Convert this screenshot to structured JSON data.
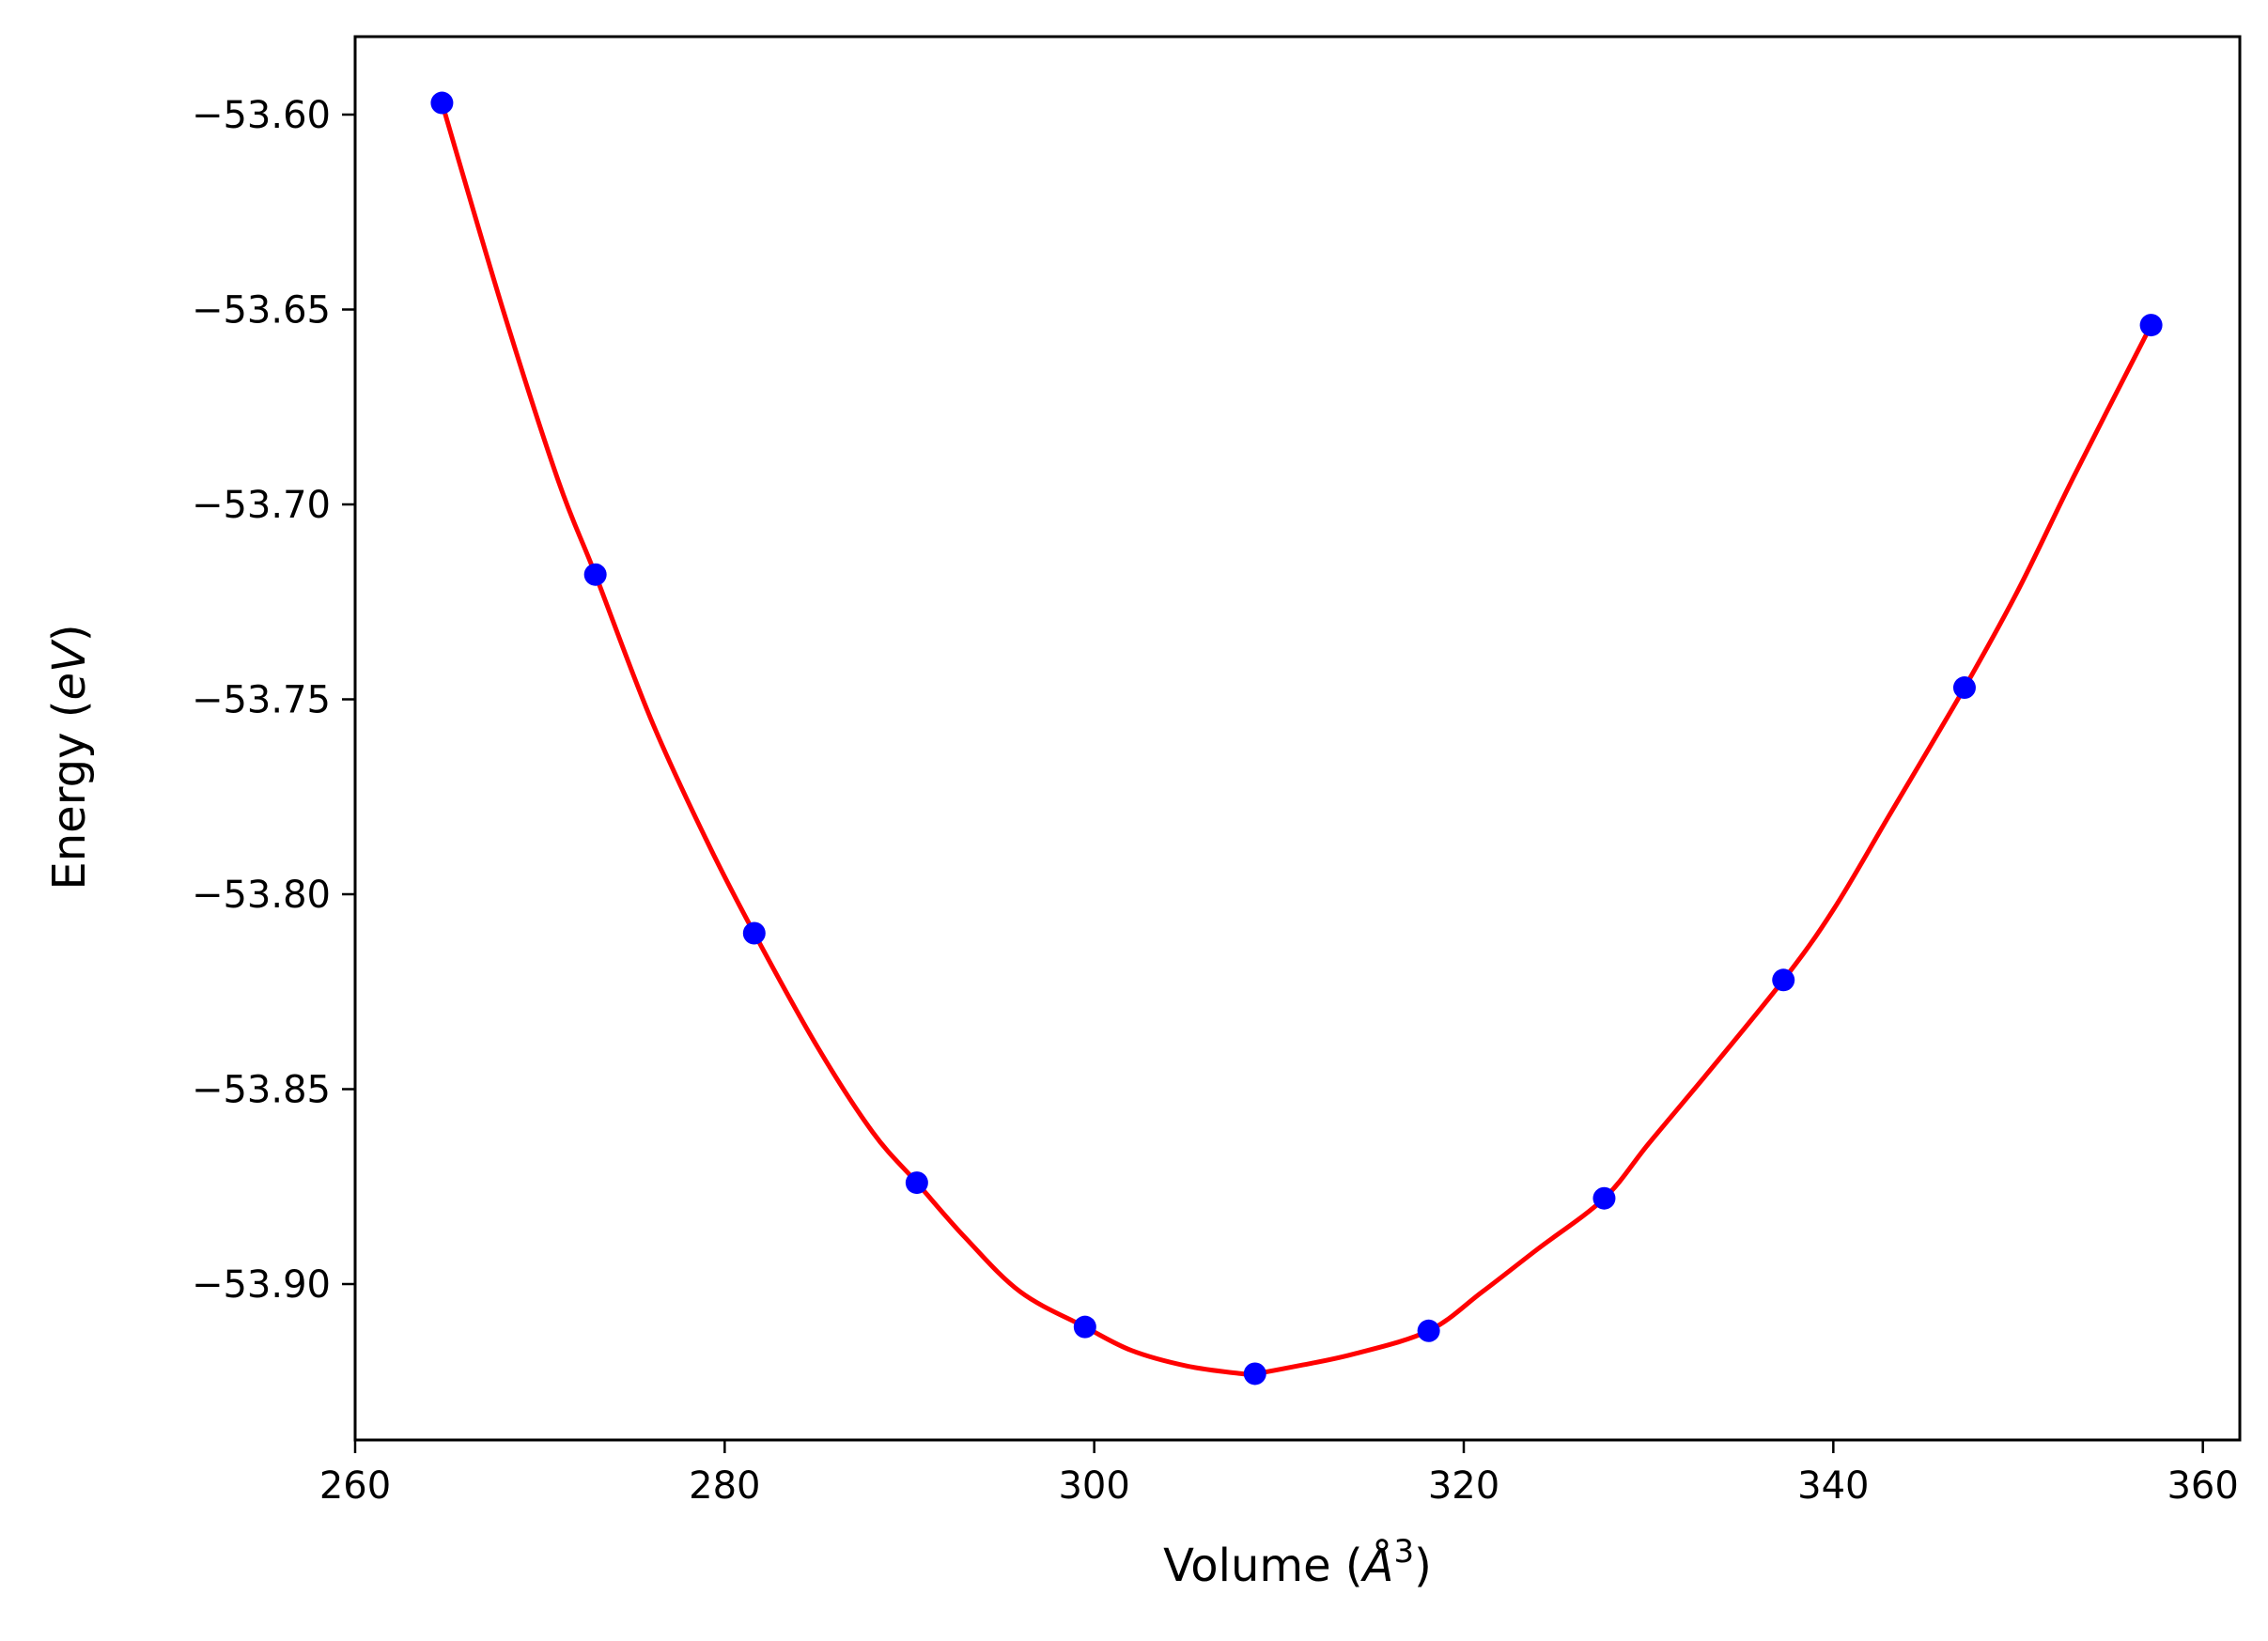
{
  "chart_data": {
    "type": "scatter",
    "xlabel": "Volume (Å³)",
    "ylabel": "Energy (eV)",
    "xlabel_parts": {
      "prefix": "Volume (",
      "symbol": "Å",
      "sup": "3",
      "suffix": ")"
    },
    "ylabel_parts": {
      "prefix": "Energy (",
      "unit": "eV",
      "suffix": ")"
    },
    "xlim": [
      260,
      362
    ],
    "ylim": [
      -53.94,
      -53.58
    ],
    "xticks": [
      260,
      280,
      300,
      320,
      340,
      360
    ],
    "xtick_labels": [
      "260",
      "280",
      "300",
      "320",
      "340",
      "360"
    ],
    "yticks": [
      -53.6,
      -53.65,
      -53.7,
      -53.75,
      -53.8,
      -53.85,
      -53.9
    ],
    "ytick_labels": [
      "−53.60",
      "−53.65",
      "−53.70",
      "−53.75",
      "−53.80",
      "−53.85",
      "−53.90"
    ],
    "grid": false,
    "legend": "none",
    "series": [
      {
        "kind": "points",
        "color": "#0000ff",
        "x": [
          264.7,
          273.0,
          281.6,
          290.4,
          299.5,
          308.7,
          318.1,
          327.6,
          337.3,
          347.1,
          357.2
        ],
        "y": [
          -53.597,
          -53.718,
          -53.81,
          -53.874,
          -53.911,
          -53.923,
          -53.912,
          -53.878,
          -53.822,
          -53.747,
          -53.654
        ]
      },
      {
        "kind": "fit-curve",
        "color": "#ff0000",
        "x": [
          264.7,
          268.0,
          271.0,
          273.0,
          276.0,
          279.0,
          281.6,
          285.0,
          288.0,
          290.4,
          293.0,
          296.0,
          299.5,
          302.0,
          305.0,
          308.0,
          308.7,
          311.0,
          314.0,
          318.1,
          321.0,
          324.0,
          327.6,
          330.0,
          333.0,
          337.3,
          340.0,
          343.0,
          347.1,
          350.0,
          353.0,
          357.2
        ],
        "y": [
          -53.597,
          -53.65,
          -53.694,
          -53.718,
          -53.755,
          -53.786,
          -53.81,
          -53.839,
          -53.861,
          -53.874,
          -53.888,
          -53.902,
          -53.911,
          -53.917,
          -53.921,
          -53.923,
          -53.923,
          -53.921,
          -53.918,
          -53.912,
          -53.902,
          -53.891,
          -53.878,
          -53.864,
          -53.847,
          -53.822,
          -53.804,
          -53.78,
          -53.747,
          -53.722,
          -53.693,
          -53.654
        ]
      }
    ]
  }
}
